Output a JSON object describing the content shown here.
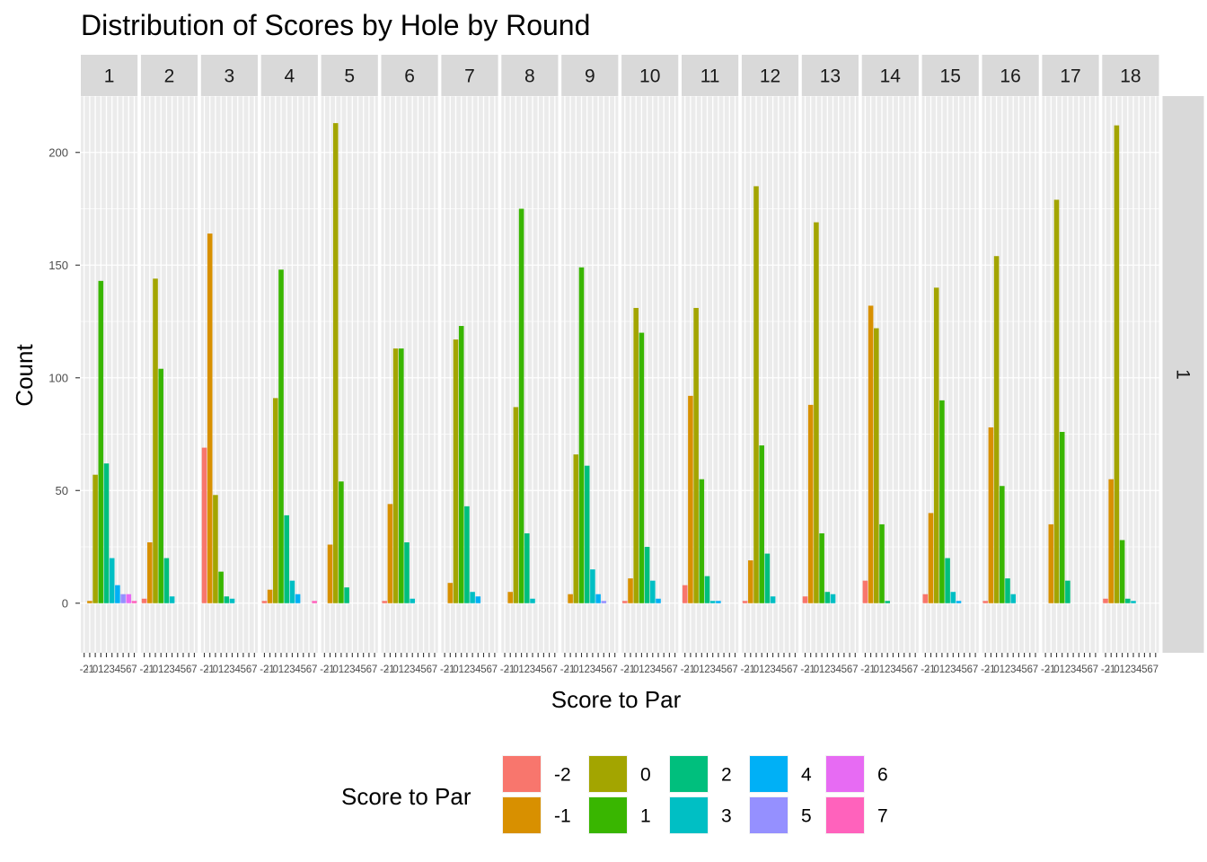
{
  "chart_data": {
    "type": "bar",
    "title": "Distribution of Scores by Hole by Round",
    "xlabel": "Score to Par",
    "ylabel": "Count",
    "ylim": [
      -22,
      225
    ],
    "yticks": [
      0,
      50,
      100,
      150,
      200
    ],
    "grid": true,
    "facet_rows": [
      "1"
    ],
    "facet_columns": [
      "1",
      "2",
      "3",
      "4",
      "5",
      "6",
      "7",
      "8",
      "9",
      "10",
      "11",
      "12",
      "13",
      "14",
      "15",
      "16",
      "17",
      "18"
    ],
    "categories": [
      "-2",
      "-1",
      "0",
      "1",
      "2",
      "3",
      "4",
      "5",
      "6",
      "7"
    ],
    "x_tick_labels": [
      "-2",
      "-1",
      "0",
      "1",
      "2",
      "3",
      "4",
      "5",
      "6",
      "7"
    ],
    "colors": [
      "#F8766D",
      "#D89000",
      "#A3A500",
      "#39B600",
      "#00BF7D",
      "#00BFC4",
      "#00B0F6",
      "#9590FF",
      "#E76BF3",
      "#FF62BC"
    ],
    "legend": {
      "title": "Score to Par",
      "position": "bottom",
      "labels": [
        "-2",
        "-1",
        "0",
        "1",
        "2",
        "3",
        "4",
        "5",
        "6",
        "7"
      ]
    },
    "holes": [
      {
        "hole": "1",
        "values": [
          0,
          1,
          57,
          143,
          62,
          20,
          8,
          4,
          4,
          1
        ]
      },
      {
        "hole": "2",
        "values": [
          2,
          27,
          144,
          104,
          20,
          3,
          0,
          0,
          0,
          0
        ]
      },
      {
        "hole": "3",
        "values": [
          69,
          164,
          48,
          14,
          3,
          2,
          0,
          0,
          0,
          0
        ]
      },
      {
        "hole": "4",
        "values": [
          1,
          6,
          91,
          148,
          39,
          10,
          4,
          0,
          0,
          1
        ]
      },
      {
        "hole": "5",
        "values": [
          0,
          26,
          213,
          54,
          7,
          0,
          0,
          0,
          0,
          0
        ]
      },
      {
        "hole": "6",
        "values": [
          1,
          44,
          113,
          113,
          27,
          2,
          0,
          0,
          0,
          0
        ]
      },
      {
        "hole": "7",
        "values": [
          0,
          9,
          117,
          123,
          43,
          5,
          3,
          0,
          0,
          0
        ]
      },
      {
        "hole": "8",
        "values": [
          0,
          5,
          87,
          175,
          31,
          2,
          0,
          0,
          0,
          0
        ]
      },
      {
        "hole": "9",
        "values": [
          0,
          4,
          66,
          149,
          61,
          15,
          4,
          1,
          0,
          0
        ]
      },
      {
        "hole": "10",
        "values": [
          1,
          11,
          131,
          120,
          25,
          10,
          2,
          0,
          0,
          0
        ]
      },
      {
        "hole": "11",
        "values": [
          8,
          92,
          131,
          55,
          12,
          1,
          1,
          0,
          0,
          0
        ]
      },
      {
        "hole": "12",
        "values": [
          1,
          19,
          185,
          70,
          22,
          3,
          0,
          0,
          0,
          0
        ]
      },
      {
        "hole": "13",
        "values": [
          3,
          88,
          169,
          31,
          5,
          4,
          0,
          0,
          0,
          0
        ]
      },
      {
        "hole": "14",
        "values": [
          10,
          132,
          122,
          35,
          1,
          0,
          0,
          0,
          0,
          0
        ]
      },
      {
        "hole": "15",
        "values": [
          4,
          40,
          140,
          90,
          20,
          5,
          1,
          0,
          0,
          0
        ]
      },
      {
        "hole": "16",
        "values": [
          1,
          78,
          154,
          52,
          11,
          4,
          0,
          0,
          0,
          0
        ]
      },
      {
        "hole": "17",
        "values": [
          0,
          35,
          179,
          76,
          10,
          0,
          0,
          0,
          0,
          0
        ]
      },
      {
        "hole": "18",
        "values": [
          2,
          55,
          212,
          28,
          2,
          1,
          0,
          0,
          0,
          0
        ]
      }
    ]
  }
}
